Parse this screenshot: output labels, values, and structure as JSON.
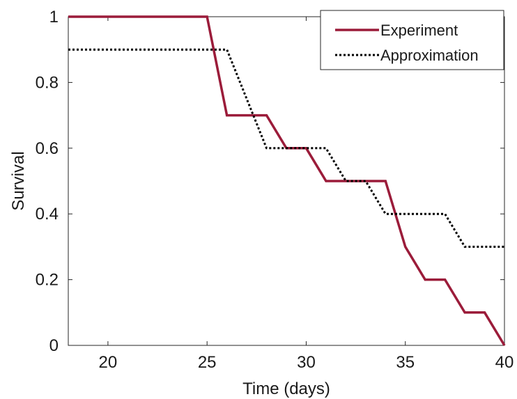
{
  "chart_data": {
    "type": "line",
    "xlabel": "Time (days)",
    "ylabel": "Survival",
    "xlim": [
      18,
      40
    ],
    "ylim": [
      0,
      1
    ],
    "xticks": [
      20,
      25,
      30,
      35,
      40
    ],
    "yticks": [
      0,
      0.2,
      0.4,
      0.6,
      0.8,
      1
    ],
    "ytick_labels": [
      "0",
      "0.2",
      "0.4",
      "0.6",
      "0.8",
      "1"
    ],
    "grid": false,
    "legend_position": "top-right",
    "series": [
      {
        "name": "Experiment",
        "style": "solid",
        "color": "#9b1c3a",
        "x": [
          18,
          25,
          26,
          28,
          29,
          30,
          31,
          34,
          35,
          36,
          37,
          38,
          39,
          40
        ],
        "y": [
          1,
          1,
          0.7,
          0.7,
          0.6,
          0.6,
          0.5,
          0.5,
          0.3,
          0.2,
          0.2,
          0.1,
          0.1,
          0
        ]
      },
      {
        "name": "Approximation",
        "style": "dotted",
        "color": "#000000",
        "x": [
          18,
          26,
          28,
          31,
          32,
          33,
          34,
          37,
          38,
          40
        ],
        "y": [
          0.9,
          0.9,
          0.6,
          0.6,
          0.5,
          0.5,
          0.4,
          0.4,
          0.3,
          0.3
        ]
      }
    ]
  }
}
